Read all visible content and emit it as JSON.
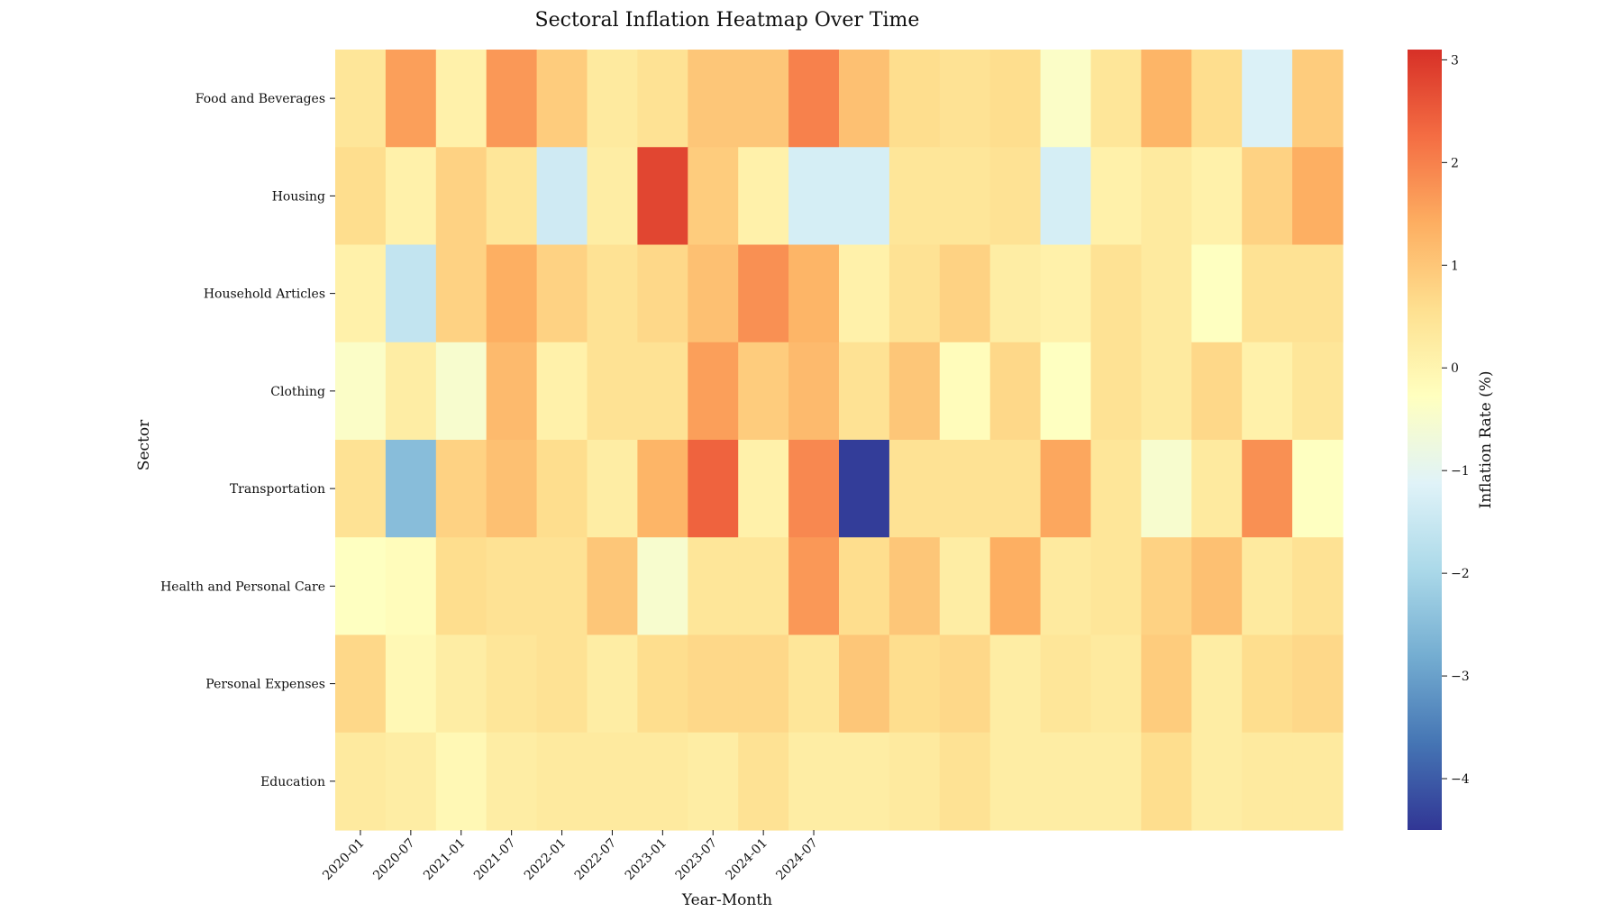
{
  "chart_data": {
    "type": "heatmap",
    "title": "Sectoral Inflation Heatmap Over Time",
    "xlabel": "Year-Month",
    "ylabel": "Sector",
    "x_tick_labels": [
      "2020-01",
      "2020-07",
      "2021-01",
      "2021-07",
      "2022-01",
      "2022-07",
      "2023-01",
      "2023-07",
      "2024-01",
      "2024-07"
    ],
    "rows": [
      "Food and Beverages",
      "Housing",
      "Household Articles",
      "Clothing",
      "Transportation",
      "Health and Personal Care",
      "Personal Expenses",
      "Education"
    ],
    "values": [
      [
        0.4,
        1.6,
        0.1,
        1.7,
        0.9,
        0.3,
        0.5,
        1.0,
        1.0,
        2.0,
        1.1,
        0.6,
        0.5,
        0.6,
        -0.4,
        0.4,
        1.3,
        0.6,
        -1.2,
        0.9
      ],
      [
        0.6,
        0.1,
        0.8,
        0.4,
        -1.4,
        0.2,
        2.8,
        0.9,
        0.1,
        -1.3,
        -1.3,
        0.4,
        0.4,
        0.5,
        -1.3,
        0.1,
        0.3,
        0.1,
        0.8,
        1.4
      ],
      [
        0.1,
        -1.6,
        0.8,
        1.4,
        0.8,
        0.5,
        0.7,
        1.1,
        1.8,
        1.3,
        0.1,
        0.5,
        0.8,
        0.2,
        0.1,
        0.5,
        0.3,
        -0.3,
        0.5,
        0.5
      ],
      [
        -0.4,
        0.2,
        -0.5,
        1.2,
        0.1,
        0.5,
        0.5,
        1.6,
        0.9,
        1.2,
        0.5,
        1.0,
        -0.2,
        0.7,
        -0.3,
        0.5,
        0.3,
        0.7,
        0.1,
        0.4
      ],
      [
        0.5,
        -2.5,
        0.8,
        1.1,
        0.6,
        0.2,
        1.3,
        2.4,
        0.1,
        1.9,
        -4.4,
        0.5,
        0.5,
        0.5,
        1.5,
        0.4,
        -0.5,
        0.3,
        1.8,
        -0.3
      ],
      [
        -0.3,
        -0.2,
        0.6,
        0.5,
        0.5,
        1.0,
        -0.5,
        0.4,
        0.4,
        1.7,
        0.6,
        1.0,
        0.2,
        1.4,
        0.3,
        0.4,
        0.8,
        1.1,
        0.3,
        0.5
      ],
      [
        0.7,
        -0.1,
        0.2,
        0.4,
        0.5,
        0.2,
        0.6,
        0.7,
        0.7,
        0.4,
        1.0,
        0.6,
        0.7,
        0.2,
        0.4,
        0.3,
        0.9,
        0.2,
        0.6,
        0.7
      ],
      [
        0.3,
        0.2,
        -0.1,
        0.2,
        0.3,
        0.3,
        0.3,
        0.2,
        0.5,
        0.2,
        0.2,
        0.3,
        0.5,
        0.2,
        0.2,
        0.2,
        0.6,
        0.2,
        0.3,
        0.3
      ]
    ],
    "color_scale": {
      "vmin": -4.5,
      "vmax": 3.1,
      "colors": [
        "#313695",
        "#4575b4",
        "#74add1",
        "#abd9e9",
        "#e0f3f8",
        "#ffffbf",
        "#fee090",
        "#fdae61",
        "#f46d43",
        "#d73027"
      ],
      "label": "Inflation Rate (%)",
      "ticks": [
        3,
        2,
        1,
        0,
        -1,
        -2,
        -3,
        -4
      ],
      "tick_labels": [
        "3",
        "2",
        "1",
        "0",
        "−1",
        "−2",
        "−3",
        "−4"
      ]
    }
  }
}
